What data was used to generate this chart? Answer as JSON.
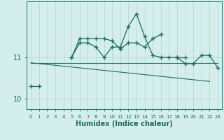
{
  "xlabel": "Humidex (Indice chaleur)",
  "background_color": "#d4eeeb",
  "grid_color": "#b8d8d4",
  "line_color": "#1a6b60",
  "x_values": [
    0,
    1,
    2,
    3,
    4,
    5,
    6,
    7,
    8,
    9,
    10,
    11,
    12,
    13,
    14,
    15,
    16,
    17,
    18,
    19,
    20,
    21,
    22,
    23
  ],
  "line1": [
    10.3,
    10.3,
    null,
    null,
    null,
    11.0,
    11.45,
    11.45,
    11.45,
    11.45,
    11.4,
    11.2,
    11.35,
    11.35,
    11.25,
    11.45,
    11.55,
    null,
    11.0,
    11.0,
    null,
    null,
    null,
    null
  ],
  "line2": [
    null,
    null,
    null,
    null,
    null,
    11.0,
    11.35,
    11.35,
    11.25,
    11.0,
    11.25,
    11.25,
    11.75,
    12.05,
    11.5,
    11.05,
    11.0,
    11.0,
    11.0,
    10.85,
    10.85,
    11.05,
    11.05,
    10.75
  ],
  "line3_x": [
    0,
    23
  ],
  "line3_y": [
    10.87,
    10.87
  ],
  "line4_x": [
    0,
    22
  ],
  "line4_y": [
    10.87,
    10.42
  ],
  "yticks": [
    10,
    11
  ],
  "ylim": [
    9.75,
    12.35
  ],
  "xlim": [
    -0.5,
    23.5
  ]
}
